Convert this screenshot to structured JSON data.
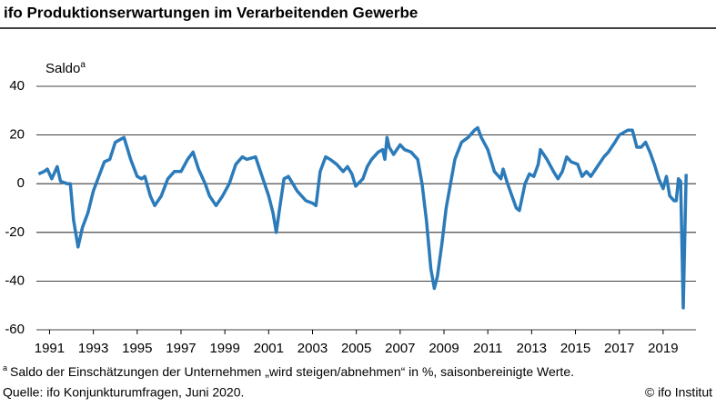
{
  "chart_data": {
    "type": "line",
    "title": "ifo Produktionserwartungen im Verarbeitenden Gewerbe",
    "ylabel": "Saldo",
    "ylabel_marker": "a",
    "footnote_marker": "a",
    "footnote": "Saldo der Einschätzungen der Unternehmen „wird steigen/abnehmen“ in %, saisonbereinigte Werte.",
    "source": "Quelle: ifo Konjunkturumfragen, Juni 2020.",
    "credit": "© ifo Institut",
    "color": "#2b7bba",
    "xlim": [
      1990.9,
      2021.0
    ],
    "ylim": [
      -60,
      40
    ],
    "yticks": [
      40,
      20,
      0,
      -20,
      -40,
      -60
    ],
    "xticks": [
      {
        "value": 1991.5,
        "label": "1991"
      },
      {
        "value": 1993.5,
        "label": "1993"
      },
      {
        "value": 1995.5,
        "label": "1995"
      },
      {
        "value": 1997.5,
        "label": "1997"
      },
      {
        "value": 1999.5,
        "label": "1999"
      },
      {
        "value": 2001.5,
        "label": "2001"
      },
      {
        "value": 2003.5,
        "label": "2003"
      },
      {
        "value": 2005.5,
        "label": "2005"
      },
      {
        "value": 2007.5,
        "label": "2007"
      },
      {
        "value": 2009.5,
        "label": "2009"
      },
      {
        "value": 2011.5,
        "label": "2011"
      },
      {
        "value": 2013.5,
        "label": "2013"
      },
      {
        "value": 2015.5,
        "label": "2015"
      },
      {
        "value": 2017.5,
        "label": "2017"
      },
      {
        "value": 2019.5,
        "label": "2019"
      }
    ],
    "grid": true,
    "x": [
      1991.0,
      1991.25,
      1991.4,
      1991.6,
      1991.85,
      1992.0,
      1992.3,
      1992.45,
      1992.6,
      1992.8,
      1993.0,
      1993.25,
      1993.5,
      1993.75,
      1994.0,
      1994.25,
      1994.5,
      1994.9,
      1995.2,
      1995.5,
      1995.7,
      1995.85,
      1996.1,
      1996.3,
      1996.6,
      1996.9,
      1997.2,
      1997.5,
      1997.8,
      1998.05,
      1998.3,
      1998.6,
      1998.8,
      1999.1,
      1999.4,
      1999.7,
      2000.0,
      2000.3,
      2000.5,
      2000.9,
      2001.2,
      2001.5,
      2001.7,
      2001.85,
      2002.0,
      2002.2,
      2002.4,
      2002.6,
      2002.8,
      2003.0,
      2003.2,
      2003.5,
      2003.66,
      2003.85,
      2004.1,
      2004.3,
      2004.6,
      2004.9,
      2005.1,
      2005.3,
      2005.47,
      2005.8,
      2006.0,
      2006.2,
      2006.5,
      2006.7,
      2006.8,
      2006.9,
      2007.0,
      2007.2,
      2007.5,
      2007.7,
      2008.0,
      2008.3,
      2008.5,
      2008.7,
      2008.9,
      2009.06,
      2009.2,
      2009.4,
      2009.6,
      2009.8,
      2010.0,
      2010.3,
      2010.6,
      2010.9,
      2011.04,
      2011.2,
      2011.5,
      2011.8,
      2012.1,
      2012.2,
      2012.4,
      2012.6,
      2012.8,
      2012.94,
      2013.2,
      2013.4,
      2013.6,
      2013.8,
      2013.9,
      2014.2,
      2014.5,
      2014.7,
      2014.9,
      2015.1,
      2015.3,
      2015.6,
      2015.8,
      2016.0,
      2016.2,
      2016.5,
      2016.8,
      2017.0,
      2017.3,
      2017.5,
      2017.7,
      2017.9,
      2018.1,
      2018.3,
      2018.5,
      2018.7,
      2018.9,
      2019.1,
      2019.3,
      2019.5,
      2019.65,
      2019.8,
      2020.0,
      2020.1,
      2020.2,
      2020.3,
      2020.35,
      2020.42,
      2020.55
    ],
    "values": [
      4,
      5,
      6,
      2,
      7,
      1,
      0,
      0,
      -15,
      -26,
      -18,
      -12,
      -3,
      3,
      9,
      10,
      17,
      19,
      10,
      3,
      2,
      3,
      -5,
      -9,
      -5,
      2,
      5,
      5,
      10,
      13,
      6,
      0,
      -5,
      -9,
      -5,
      0,
      8,
      11,
      10,
      11,
      3,
      -5,
      -12,
      -20,
      -10,
      2,
      3,
      0,
      -3,
      -5,
      -7,
      -8,
      -9,
      5,
      11,
      10,
      8,
      5,
      7,
      4,
      -1,
      2,
      7,
      10,
      13,
      14,
      10,
      19,
      15,
      12,
      16,
      14,
      13,
      10,
      0,
      -15,
      -35,
      -43,
      -38,
      -25,
      -10,
      0,
      10,
      17,
      19,
      22,
      23,
      19,
      14,
      5,
      2,
      6,
      0,
      -5,
      -10,
      -11,
      0,
      4,
      3,
      8,
      14,
      10,
      5,
      2,
      5,
      11,
      9,
      8,
      3,
      5,
      3,
      7,
      11,
      13,
      17,
      20,
      21,
      22,
      22,
      15,
      15,
      17,
      13,
      8,
      2,
      -2,
      3,
      -5,
      -7,
      -7,
      2,
      1,
      -20,
      -51,
      4
    ]
  }
}
